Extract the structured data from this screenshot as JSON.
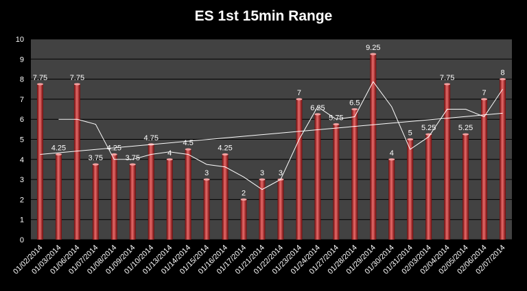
{
  "chart_data": {
    "type": "bar",
    "title": "ES 1st 15min Range",
    "categories": [
      "01/02/2014",
      "01/03/2014",
      "01/06/2014",
      "01/07/2014",
      "01/08/2014",
      "01/09/2014",
      "01/10/2014",
      "01/13/2014",
      "01/14/2014",
      "01/15/2014",
      "01/16/2014",
      "01/17/2014",
      "01/21/2014",
      "01/22/2014",
      "01/23/2014",
      "01/24/2014",
      "01/27/2014",
      "01/28/2014",
      "01/29/2014",
      "01/30/2014",
      "01/31/2014",
      "02/03/2014",
      "02/04/2014",
      "02/05/2014",
      "02/06/2014",
      "02/07/2014"
    ],
    "values": [
      7.75,
      4.25,
      7.75,
      3.75,
      4.25,
      3.75,
      4.75,
      4,
      4.5,
      3,
      4.25,
      2,
      3,
      3,
      7,
      6.25,
      5.75,
      6.5,
      9.25,
      4,
      5,
      5.25,
      7.75,
      5.25,
      7,
      8
    ],
    "data_labels": [
      "7.75",
      "4.25",
      "7.75",
      "3.75",
      "4.25",
      "3.75",
      "4.75",
      "4",
      "4.5",
      "3",
      "4.25",
      "2",
      "3",
      "3",
      "7",
      "6.25",
      "5.75",
      "6.5",
      "9.25",
      "4",
      "5",
      "5.25",
      "7.75",
      "5.25",
      "7",
      "8"
    ],
    "moving_average": {
      "period": 2,
      "values": [
        null,
        6,
        6,
        5.75,
        4,
        4,
        4.25,
        4.375,
        4.25,
        3.75,
        3.625,
        3.125,
        2.5,
        3,
        5,
        6.625,
        6,
        6.125,
        7.875,
        6.625,
        4.5,
        5.125,
        6.5,
        6.5,
        6.125,
        7.5
      ]
    },
    "trendline": {
      "type": "linear",
      "start": 4.25,
      "end": 6.3
    },
    "yticks": [
      "0",
      "1",
      "2",
      "3",
      "4",
      "5",
      "6",
      "7",
      "8",
      "9",
      "10"
    ],
    "ylim": [
      0,
      10
    ],
    "xlabel": "",
    "ylabel": "",
    "grid": true,
    "legend": "none"
  },
  "colors": {
    "background": "#000000",
    "plot_area": "#424242",
    "gridline": "#000000",
    "bar_light": "#e86a6a",
    "bar_mid": "#c62020",
    "bar_dark": "#6e0a0a",
    "bar_top": "#f2a0a0",
    "line": "#ffffff",
    "text": "#ffffff"
  }
}
